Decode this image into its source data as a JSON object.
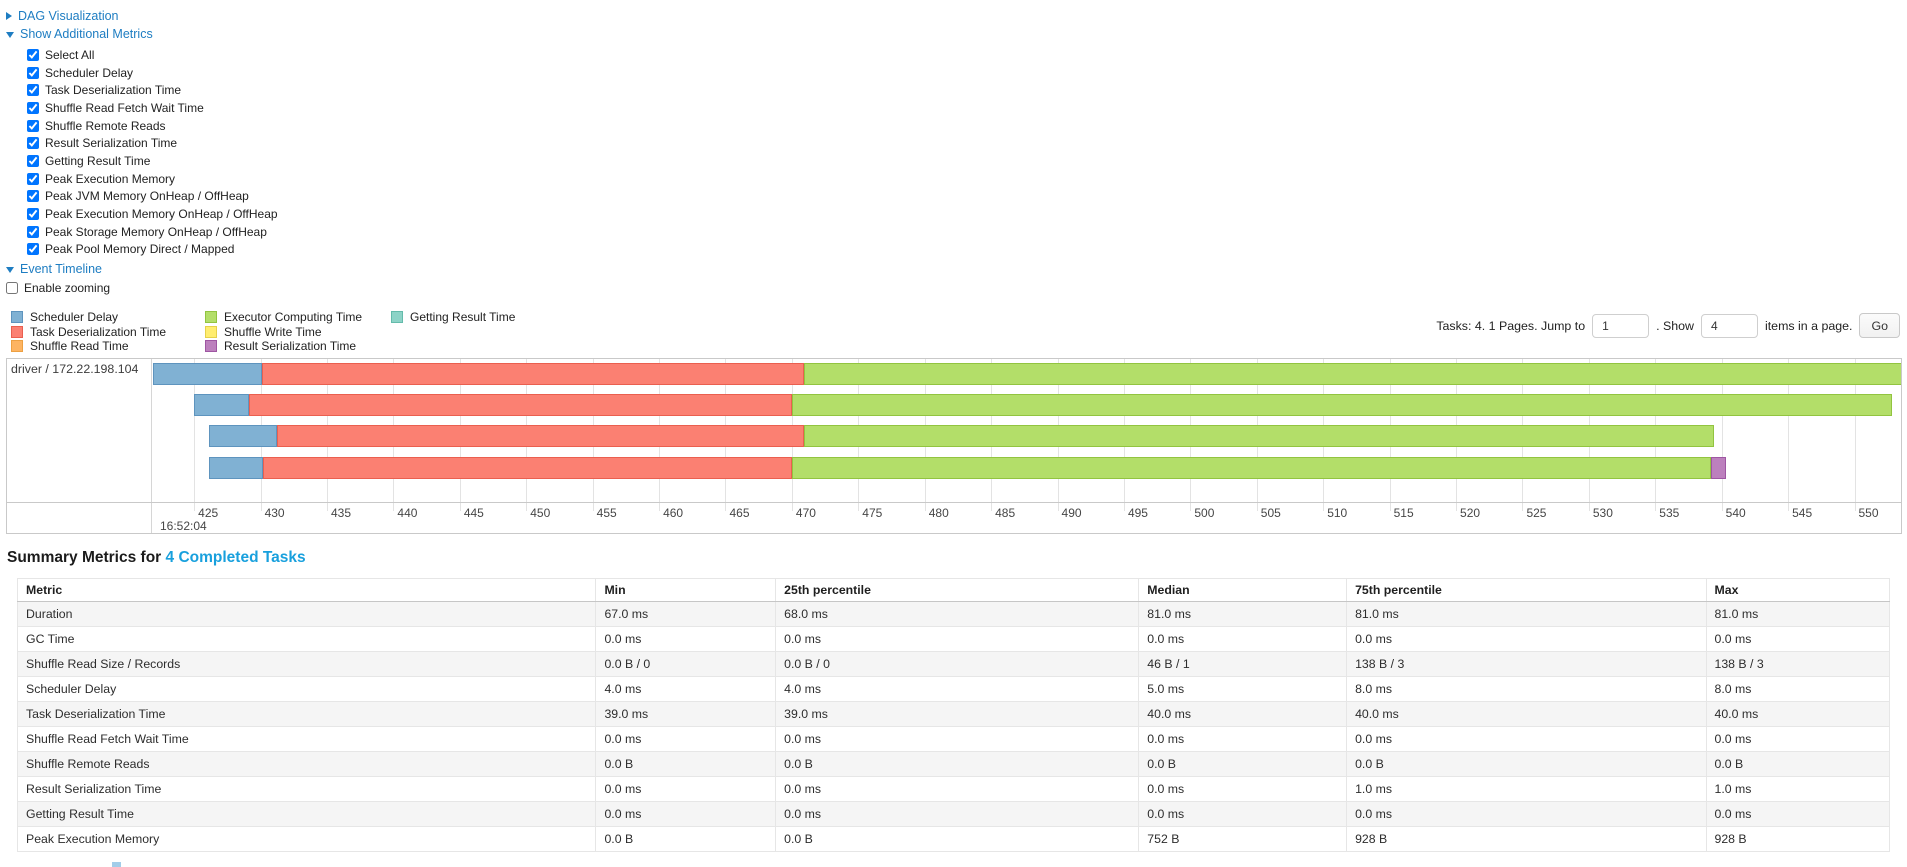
{
  "controls": {
    "dag_visualization": "DAG Visualization",
    "show_additional_metrics": "Show Additional Metrics",
    "metric_checkboxes": [
      "Select All",
      "Scheduler Delay",
      "Task Deserialization Time",
      "Shuffle Read Fetch Wait Time",
      "Shuffle Remote Reads",
      "Result Serialization Time",
      "Getting Result Time",
      "Peak Execution Memory",
      "Peak JVM Memory OnHeap / OffHeap",
      "Peak Execution Memory OnHeap / OffHeap",
      "Peak Storage Memory OnHeap / OffHeap",
      "Peak Pool Memory Direct / Mapped"
    ],
    "event_timeline": "Event Timeline",
    "enable_zooming": "Enable zooming",
    "enable_zooming_checked": false
  },
  "legend": {
    "columns": [
      [
        {
          "label": "Scheduler Delay",
          "color": "#80B1D3",
          "border": "#5E94BE"
        },
        {
          "label": "Task Deserialization Time",
          "color": "#FB8072",
          "border": "#EA5F4F"
        },
        {
          "label": "Shuffle Read Time",
          "color": "#FDB462",
          "border": "#EDA042"
        }
      ],
      [
        {
          "label": "Executor Computing Time",
          "color": "#B3DE69",
          "border": "#92C440"
        },
        {
          "label": "Shuffle Write Time",
          "color": "#FFED6F",
          "border": "#E5D14A"
        },
        {
          "label": "Result Serialization Time",
          "color": "#BC80BD",
          "border": "#9E56A2"
        }
      ],
      [
        {
          "label": "Getting Result Time",
          "color": "#8DD3C7",
          "border": "#64BBAB"
        }
      ]
    ]
  },
  "pagination": {
    "summary": "Tasks: 4. 1 Pages. Jump to",
    "jump_value": "1",
    "mid_text": ". Show",
    "show_value": "4",
    "suffix_text": "items in a page.",
    "go_label": "Go"
  },
  "chart_data": {
    "type": "bar",
    "variant": "horizontal-stacked-task-timeline",
    "group_label": "driver / 172.22.198.104",
    "axis": {
      "min": 421.9,
      "max": 553.5,
      "ticks": [
        425,
        430,
        435,
        440,
        445,
        450,
        455,
        460,
        465,
        470,
        475,
        480,
        485,
        490,
        495,
        500,
        505,
        510,
        515,
        520,
        525,
        530,
        535,
        540,
        545,
        550
      ],
      "major_label": "16:52:04"
    },
    "bars": [
      {
        "segments": [
          {
            "metric": "Scheduler Delay",
            "from": 421.9,
            "to": 430.1
          },
          {
            "metric": "Task Deserialization Time",
            "from": 430.1,
            "to": 470.9
          },
          {
            "metric": "Executor Computing Time",
            "from": 470.9,
            "to": 554.0
          }
        ]
      },
      {
        "segments": [
          {
            "metric": "Scheduler Delay",
            "from": 425.0,
            "to": 429.1
          },
          {
            "metric": "Task Deserialization Time",
            "from": 429.1,
            "to": 470.0
          },
          {
            "metric": "Executor Computing Time",
            "from": 470.0,
            "to": 552.8
          }
        ]
      },
      {
        "segments": [
          {
            "metric": "Scheduler Delay",
            "from": 426.1,
            "to": 431.2
          },
          {
            "metric": "Task Deserialization Time",
            "from": 431.2,
            "to": 470.9
          },
          {
            "metric": "Executor Computing Time",
            "from": 470.9,
            "to": 539.4
          }
        ]
      },
      {
        "segments": [
          {
            "metric": "Scheduler Delay",
            "from": 426.1,
            "to": 430.2
          },
          {
            "metric": "Task Deserialization Time",
            "from": 430.2,
            "to": 470.0
          },
          {
            "metric": "Executor Computing Time",
            "from": 470.0,
            "to": 539.2
          },
          {
            "metric": "Result Serialization Time",
            "from": 539.2,
            "to": 540.3
          }
        ]
      }
    ]
  },
  "summary_metrics": {
    "title_prefix": "Summary Metrics for",
    "title_link": "4 Completed Tasks",
    "columns": [
      "Metric",
      "Min",
      "25th percentile",
      "Median",
      "75th percentile",
      "Max"
    ],
    "rows": [
      {
        "metric": "Duration",
        "values": [
          "67.0 ms",
          "68.0 ms",
          "81.0 ms",
          "81.0 ms",
          "81.0 ms"
        ]
      },
      {
        "metric": "GC Time",
        "values": [
          "0.0 ms",
          "0.0 ms",
          "0.0 ms",
          "0.0 ms",
          "0.0 ms"
        ]
      },
      {
        "metric": "Shuffle Read Size / Records",
        "values": [
          "0.0 B / 0",
          "0.0 B / 0",
          "46 B / 1",
          "138 B / 3",
          "138 B / 3"
        ]
      },
      {
        "metric": "Scheduler Delay",
        "values": [
          "4.0 ms",
          "4.0 ms",
          "5.0 ms",
          "8.0 ms",
          "8.0 ms"
        ]
      },
      {
        "metric": "Task Deserialization Time",
        "values": [
          "39.0 ms",
          "39.0 ms",
          "40.0 ms",
          "40.0 ms",
          "40.0 ms"
        ]
      },
      {
        "metric": "Shuffle Read Fetch Wait Time",
        "values": [
          "0.0 ms",
          "0.0 ms",
          "0.0 ms",
          "0.0 ms",
          "0.0 ms"
        ]
      },
      {
        "metric": "Shuffle Remote Reads",
        "values": [
          "0.0 B",
          "0.0 B",
          "0.0 B",
          "0.0 B",
          "0.0 B"
        ]
      },
      {
        "metric": "Result Serialization Time",
        "values": [
          "0.0 ms",
          "0.0 ms",
          "0.0 ms",
          "1.0 ms",
          "1.0 ms"
        ]
      },
      {
        "metric": "Getting Result Time",
        "values": [
          "0.0 ms",
          "0.0 ms",
          "0.0 ms",
          "0.0 ms",
          "0.0 ms"
        ]
      },
      {
        "metric": "Peak Execution Memory",
        "values": [
          "0.0 B",
          "0.0 B",
          "752 B",
          "928 B",
          "928 B"
        ]
      }
    ]
  }
}
